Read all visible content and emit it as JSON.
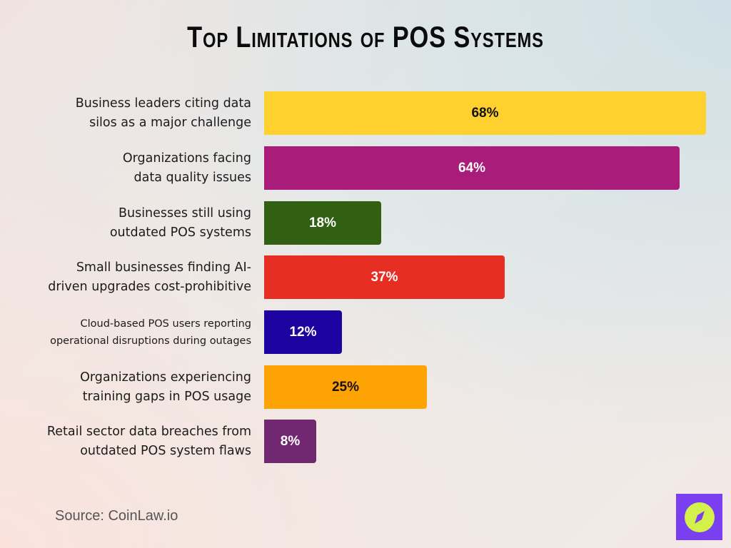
{
  "title": "Top Limitations of POS Systems",
  "source": "Source: CoinLaw.io",
  "logo": {
    "icon": "compass-icon",
    "bg_color": "#7b3ff2",
    "fg_color": "#d4f04a"
  },
  "rows": [
    {
      "label": "Business leaders citing data\nsilos as a major challenge",
      "value": 68,
      "display": "68%",
      "color": "#ffd12f",
      "text_color": "#111111",
      "small": false
    },
    {
      "label": "Organizations facing\ndata quality issues",
      "value": 64,
      "display": "64%",
      "color": "#aa1c79",
      "text_color": "#ffffff",
      "small": false
    },
    {
      "label": "Businesses still using\noutdated POS systems",
      "value": 18,
      "display": "18%",
      "color": "#326012",
      "text_color": "#ffffff",
      "small": false
    },
    {
      "label": "Small businesses finding AI-\ndriven upgrades cost-prohibitive",
      "value": 37,
      "display": "37%",
      "color": "#e72e22",
      "text_color": "#ffffff",
      "small": false
    },
    {
      "label": "Cloud-based POS users reporting\noperational disruptions during outages",
      "value": 12,
      "display": "12%",
      "color": "#1d04a0",
      "text_color": "#ffffff",
      "small": true
    },
    {
      "label": "Organizations experiencing\ntraining gaps in POS usage",
      "value": 25,
      "display": "25%",
      "color": "#fea304",
      "text_color": "#1a0f08",
      "small": false
    },
    {
      "label": "Retail sector data breaches from\noutdated POS system flaws",
      "value": 8,
      "display": "8%",
      "color": "#722871",
      "text_color": "#ffffff",
      "small": false
    }
  ],
  "chart_data": {
    "type": "bar",
    "orientation": "horizontal",
    "title": "Top Limitations of POS Systems",
    "categories": [
      "Business leaders citing data silos as a major challenge",
      "Organizations facing data quality issues",
      "Businesses still using outdated POS systems",
      "Small businesses finding AI-driven upgrades cost-prohibitive",
      "Cloud-based POS users reporting operational disruptions during outages",
      "Organizations experiencing training gaps in POS usage",
      "Retail sector data breaches from outdated POS system flaws"
    ],
    "values": [
      68,
      64,
      18,
      37,
      12,
      25,
      8
    ],
    "unit": "%",
    "colors": [
      "#ffd12f",
      "#aa1c79",
      "#326012",
      "#e72e22",
      "#1d04a0",
      "#fea304",
      "#722871"
    ],
    "xlabel": "",
    "ylabel": "",
    "grid": false,
    "legend": "none",
    "data_labels": "inside-center",
    "source": "Source: CoinLaw.io"
  }
}
